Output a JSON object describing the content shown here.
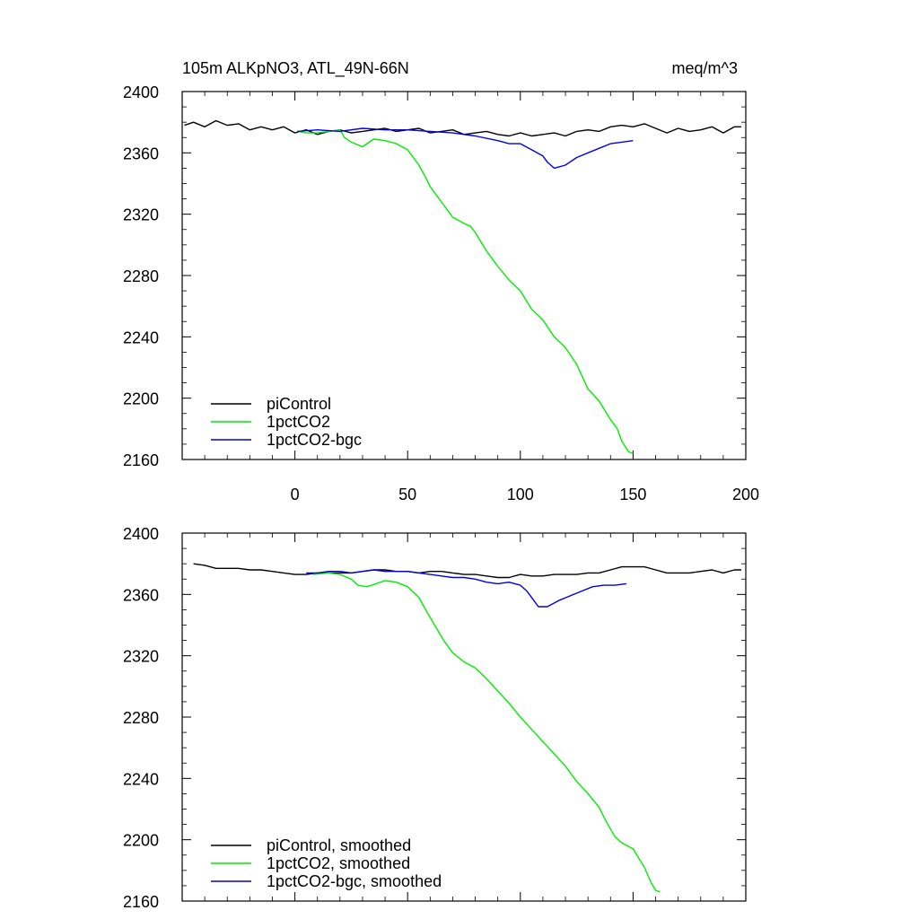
{
  "title_left": "105m ALKpNO3, ATL_49N-66N",
  "title_right": "meq/m^3",
  "chart_data": [
    {
      "type": "line",
      "panel": "raw",
      "xlim": [
        -50,
        200
      ],
      "ylim": [
        2160,
        2400
      ],
      "x_ticks": [
        0,
        50,
        100,
        150,
        200
      ],
      "y_ticks": [
        2160,
        2200,
        2240,
        2280,
        2320,
        2360,
        2400
      ],
      "x_tick_labels_shown": true,
      "grid": false,
      "legend_position": "bottom-left",
      "series": [
        {
          "name": "piControl",
          "color": "#000000",
          "points": [
            [
              -49,
              2378
            ],
            [
              -45,
              2380
            ],
            [
              -40,
              2377
            ],
            [
              -35,
              2381
            ],
            [
              -30,
              2378
            ],
            [
              -25,
              2379
            ],
            [
              -20,
              2375
            ],
            [
              -15,
              2377
            ],
            [
              -10,
              2375
            ],
            [
              -5,
              2377
            ],
            [
              0,
              2373
            ],
            [
              5,
              2375
            ],
            [
              10,
              2372
            ],
            [
              15,
              2374
            ],
            [
              20,
              2375
            ],
            [
              25,
              2373
            ],
            [
              30,
              2374
            ],
            [
              35,
              2375
            ],
            [
              40,
              2376
            ],
            [
              45,
              2374
            ],
            [
              50,
              2375
            ],
            [
              55,
              2376
            ],
            [
              60,
              2373
            ],
            [
              65,
              2374
            ],
            [
              70,
              2375
            ],
            [
              75,
              2372
            ],
            [
              80,
              2373
            ],
            [
              85,
              2374
            ],
            [
              90,
              2372
            ],
            [
              95,
              2371
            ],
            [
              100,
              2373
            ],
            [
              105,
              2371
            ],
            [
              110,
              2372
            ],
            [
              115,
              2373
            ],
            [
              120,
              2371
            ],
            [
              125,
              2374
            ],
            [
              130,
              2375
            ],
            [
              135,
              2374
            ],
            [
              140,
              2377
            ],
            [
              145,
              2378
            ],
            [
              150,
              2377
            ],
            [
              155,
              2379
            ],
            [
              160,
              2376
            ],
            [
              165,
              2373
            ],
            [
              170,
              2376
            ],
            [
              175,
              2374
            ],
            [
              180,
              2375
            ],
            [
              185,
              2377
            ],
            [
              190,
              2373
            ],
            [
              195,
              2377
            ],
            [
              198,
              2377
            ]
          ]
        },
        {
          "name": "1pctCO2",
          "color": "#00ee00",
          "points": [
            [
              1,
              2374
            ],
            [
              5,
              2373
            ],
            [
              10,
              2373
            ],
            [
              15,
              2374
            ],
            [
              20,
              2375
            ],
            [
              22,
              2370
            ],
            [
              25,
              2367
            ],
            [
              30,
              2364
            ],
            [
              35,
              2369
            ],
            [
              40,
              2368
            ],
            [
              45,
              2366
            ],
            [
              50,
              2362
            ],
            [
              55,
              2352
            ],
            [
              58,
              2344
            ],
            [
              60,
              2338
            ],
            [
              65,
              2328
            ],
            [
              70,
              2318
            ],
            [
              75,
              2314
            ],
            [
              78,
              2312
            ],
            [
              80,
              2308
            ],
            [
              85,
              2296
            ],
            [
              90,
              2286
            ],
            [
              95,
              2277
            ],
            [
              100,
              2270
            ],
            [
              105,
              2258
            ],
            [
              110,
              2251
            ],
            [
              115,
              2240
            ],
            [
              120,
              2233
            ],
            [
              125,
              2222
            ],
            [
              130,
              2206
            ],
            [
              135,
              2198
            ],
            [
              140,
              2186
            ],
            [
              143,
              2180
            ],
            [
              145,
              2172
            ],
            [
              148,
              2165
            ],
            [
              150,
              2164
            ]
          ]
        },
        {
          "name": "1pctCO2-bgc",
          "color": "#0000ee",
          "points": [
            [
              1,
              2374
            ],
            [
              10,
              2375
            ],
            [
              20,
              2374
            ],
            [
              30,
              2376
            ],
            [
              40,
              2375
            ],
            [
              50,
              2375
            ],
            [
              60,
              2374
            ],
            [
              70,
              2373
            ],
            [
              80,
              2371
            ],
            [
              90,
              2368
            ],
            [
              95,
              2366
            ],
            [
              100,
              2366
            ],
            [
              105,
              2362
            ],
            [
              110,
              2358
            ],
            [
              112,
              2354
            ],
            [
              115,
              2350
            ],
            [
              120,
              2352
            ],
            [
              125,
              2357
            ],
            [
              130,
              2360
            ],
            [
              135,
              2363
            ],
            [
              140,
              2366
            ],
            [
              145,
              2367
            ],
            [
              150,
              2368
            ]
          ]
        }
      ],
      "legend": [
        "piControl",
        "1pctCO2",
        "1pctCO2-bgc"
      ]
    },
    {
      "type": "line",
      "panel": "smoothed",
      "xlim": [
        -50,
        200
      ],
      "ylim": [
        2160,
        2400
      ],
      "x_ticks": [
        0,
        50,
        100,
        150,
        200
      ],
      "y_ticks": [
        2160,
        2200,
        2240,
        2280,
        2320,
        2360,
        2400
      ],
      "x_tick_labels_shown": false,
      "grid": false,
      "legend_position": "bottom-left",
      "series": [
        {
          "name": "piControl, smoothed",
          "color": "#000000",
          "points": [
            [
              -45,
              2380
            ],
            [
              -40,
              2379
            ],
            [
              -35,
              2377
            ],
            [
              -30,
              2377
            ],
            [
              -25,
              2377
            ],
            [
              -20,
              2376
            ],
            [
              -15,
              2376
            ],
            [
              -10,
              2375
            ],
            [
              -5,
              2374
            ],
            [
              0,
              2373
            ],
            [
              5,
              2373
            ],
            [
              10,
              2374
            ],
            [
              15,
              2374
            ],
            [
              20,
              2374
            ],
            [
              25,
              2374
            ],
            [
              30,
              2375
            ],
            [
              35,
              2376
            ],
            [
              40,
              2376
            ],
            [
              45,
              2375
            ],
            [
              50,
              2375
            ],
            [
              55,
              2374
            ],
            [
              60,
              2375
            ],
            [
              65,
              2375
            ],
            [
              70,
              2374
            ],
            [
              75,
              2373
            ],
            [
              80,
              2373
            ],
            [
              85,
              2372
            ],
            [
              90,
              2371
            ],
            [
              95,
              2371
            ],
            [
              100,
              2373
            ],
            [
              105,
              2372
            ],
            [
              110,
              2372
            ],
            [
              115,
              2373
            ],
            [
              120,
              2373
            ],
            [
              125,
              2373
            ],
            [
              130,
              2374
            ],
            [
              135,
              2374
            ],
            [
              140,
              2376
            ],
            [
              145,
              2378
            ],
            [
              150,
              2378
            ],
            [
              155,
              2378
            ],
            [
              160,
              2376
            ],
            [
              165,
              2374
            ],
            [
              170,
              2374
            ],
            [
              175,
              2374
            ],
            [
              180,
              2375
            ],
            [
              185,
              2376
            ],
            [
              190,
              2374
            ],
            [
              195,
              2376
            ],
            [
              198,
              2376
            ]
          ]
        },
        {
          "name": "1pctCO2, smoothed",
          "color": "#00ee00",
          "points": [
            [
              8,
              2373
            ],
            [
              15,
              2374
            ],
            [
              20,
              2373
            ],
            [
              25,
              2370
            ],
            [
              28,
              2366
            ],
            [
              32,
              2365
            ],
            [
              36,
              2367
            ],
            [
              40,
              2369
            ],
            [
              45,
              2368
            ],
            [
              50,
              2365
            ],
            [
              55,
              2358
            ],
            [
              58,
              2350
            ],
            [
              62,
              2340
            ],
            [
              66,
              2330
            ],
            [
              70,
              2322
            ],
            [
              75,
              2316
            ],
            [
              80,
              2312
            ],
            [
              85,
              2305
            ],
            [
              90,
              2297
            ],
            [
              95,
              2289
            ],
            [
              100,
              2280
            ],
            [
              105,
              2272
            ],
            [
              110,
              2264
            ],
            [
              115,
              2256
            ],
            [
              120,
              2248
            ],
            [
              125,
              2238
            ],
            [
              130,
              2230
            ],
            [
              135,
              2221
            ],
            [
              138,
              2212
            ],
            [
              142,
              2202
            ],
            [
              145,
              2198
            ],
            [
              150,
              2194
            ],
            [
              155,
              2182
            ],
            [
              158,
              2172
            ],
            [
              160,
              2167
            ],
            [
              162,
              2166
            ]
          ]
        },
        {
          "name": "1pctCO2-bgc, smoothed",
          "color": "#0000ee",
          "points": [
            [
              5,
              2374
            ],
            [
              10,
              2374
            ],
            [
              15,
              2375
            ],
            [
              20,
              2375
            ],
            [
              25,
              2374
            ],
            [
              30,
              2375
            ],
            [
              35,
              2376
            ],
            [
              40,
              2375
            ],
            [
              45,
              2375
            ],
            [
              50,
              2375
            ],
            [
              55,
              2374
            ],
            [
              60,
              2373
            ],
            [
              65,
              2372
            ],
            [
              70,
              2371
            ],
            [
              75,
              2371
            ],
            [
              80,
              2370
            ],
            [
              85,
              2368
            ],
            [
              90,
              2367
            ],
            [
              95,
              2368
            ],
            [
              100,
              2366
            ],
            [
              103,
              2362
            ],
            [
              106,
              2356
            ],
            [
              108,
              2352
            ],
            [
              112,
              2352
            ],
            [
              117,
              2356
            ],
            [
              122,
              2359
            ],
            [
              127,
              2362
            ],
            [
              132,
              2365
            ],
            [
              137,
              2366
            ],
            [
              142,
              2366
            ],
            [
              147,
              2367
            ]
          ]
        }
      ],
      "legend": [
        "piControl, smoothed",
        "1pctCO2, smoothed",
        "1pctCO2-bgc, smoothed"
      ]
    }
  ]
}
